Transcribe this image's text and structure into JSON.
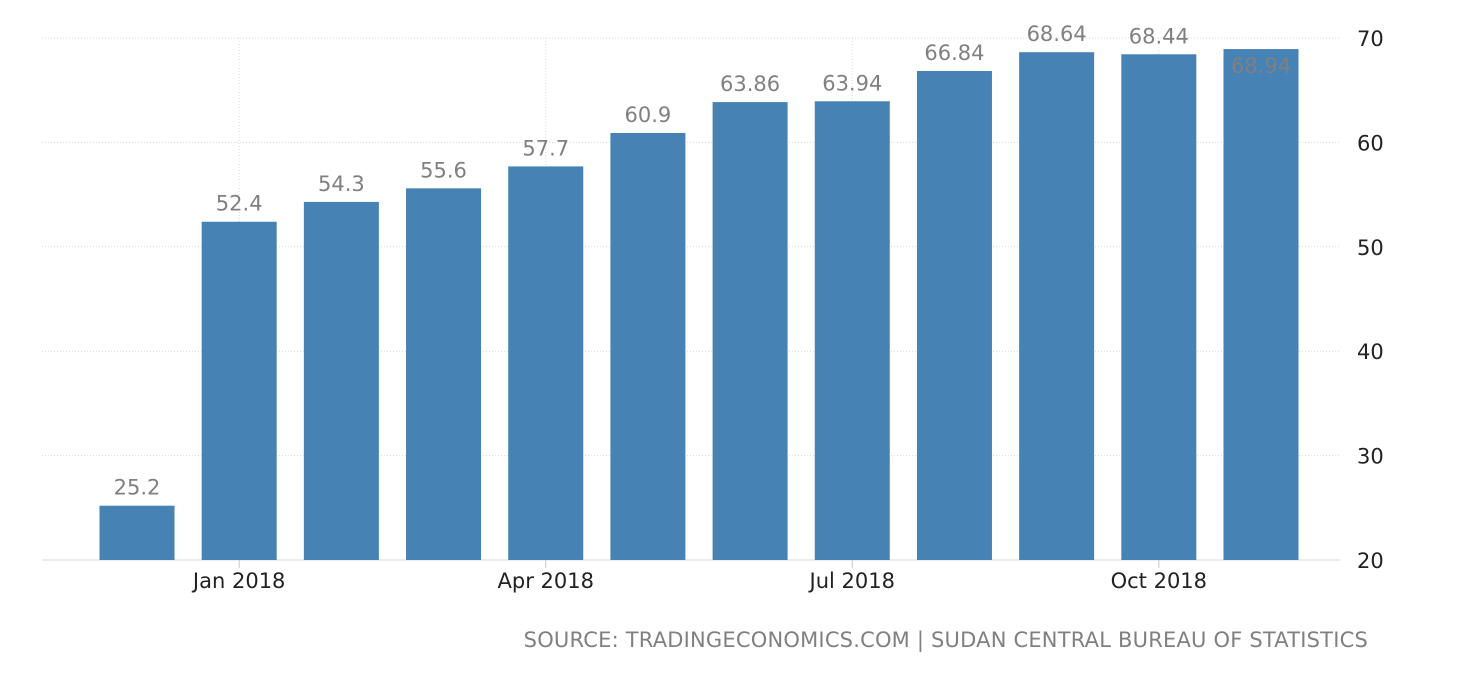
{
  "chart_data": {
    "type": "bar",
    "categories": [
      "Dec 2017",
      "Jan 2018",
      "Feb 2018",
      "Mar 2018",
      "Apr 2018",
      "May 2018",
      "Jun 2018",
      "Jul 2018",
      "Aug 2018",
      "Sep 2018",
      "Oct 2018",
      "Nov 2018"
    ],
    "values": [
      25.2,
      52.4,
      54.3,
      55.6,
      57.7,
      60.9,
      63.86,
      63.94,
      66.84,
      68.64,
      68.44,
      68.94
    ],
    "data_labels": [
      "25.2",
      "52.4",
      "54.3",
      "55.6",
      "57.7",
      "60.9",
      "63.86",
      "63.94",
      "66.84",
      "68.64",
      "68.44",
      "68.94"
    ],
    "x_tick_labels": [
      "Jan 2018",
      "Apr 2018",
      "Jul 2018",
      "Oct 2018"
    ],
    "y_ticks": [
      20,
      30,
      40,
      50,
      60,
      70
    ],
    "ylim": [
      20,
      70
    ],
    "y_axis_side": "right",
    "grid": true,
    "title": "",
    "xlabel": "",
    "ylabel": "",
    "bar_color": "#4682b4",
    "label_color": "#808080",
    "grid_color": "#d9d9d9"
  },
  "source_text": "SOURCE: TRADINGECONOMICS.COM | SUDAN CENTRAL BUREAU OF STATISTICS"
}
